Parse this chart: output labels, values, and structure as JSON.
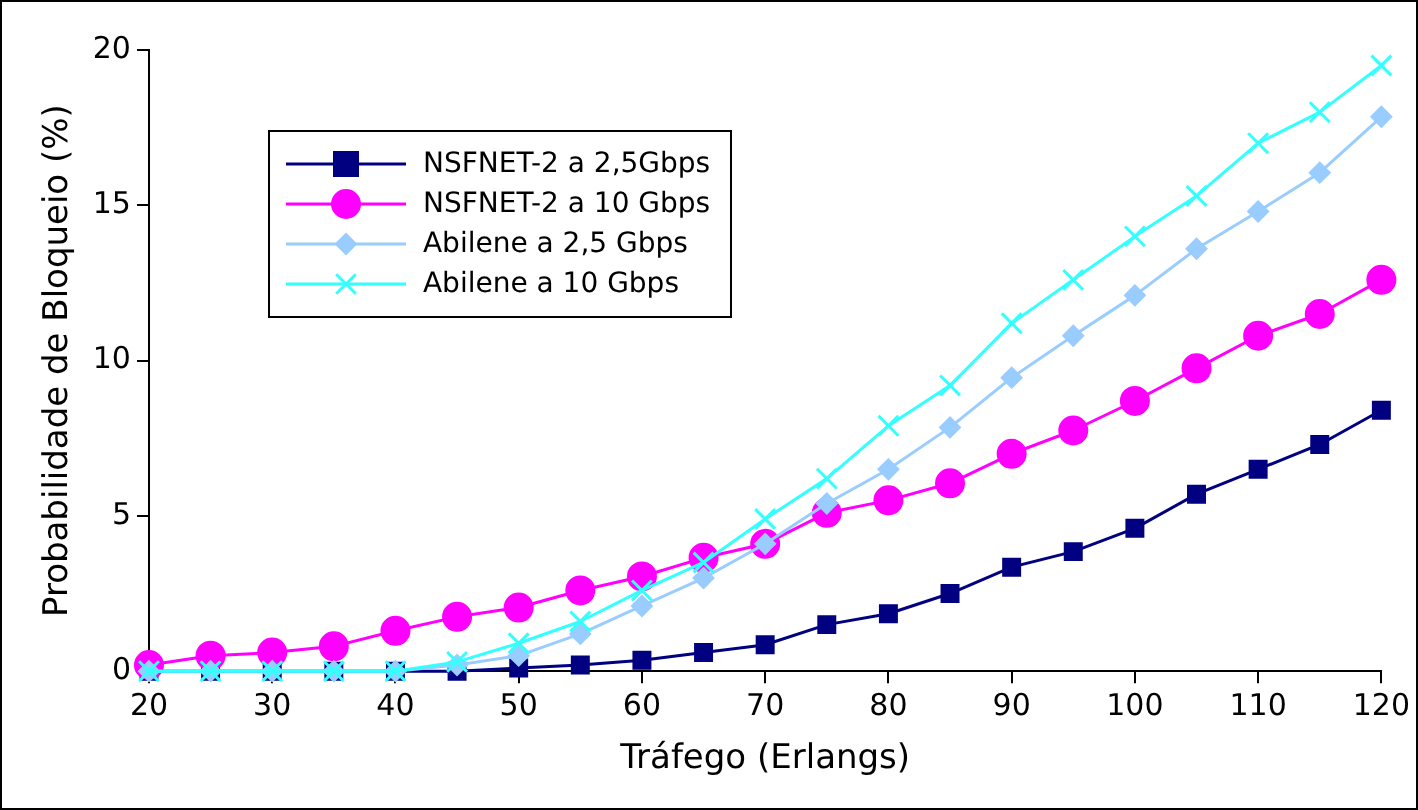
{
  "chart_data": {
    "type": "line",
    "xlabel": "Tráfego (Erlangs)",
    "ylabel": "Probabilidade de Bloqueio (%)",
    "x": [
      20,
      25,
      30,
      35,
      40,
      45,
      50,
      55,
      60,
      65,
      70,
      75,
      80,
      85,
      90,
      95,
      100,
      105,
      110,
      115,
      120
    ],
    "xlim": [
      20,
      120
    ],
    "xticks": [
      20,
      30,
      40,
      50,
      60,
      70,
      80,
      90,
      100,
      110,
      120
    ],
    "ylim": [
      0,
      20
    ],
    "yticks": [
      0,
      5,
      10,
      15,
      20
    ],
    "grid": false,
    "legend": "top left",
    "line_style": "solid",
    "series": [
      {
        "name": "NSFNET-2 a 2,5Gbps",
        "color": "#000080",
        "marker": "square",
        "values": [
          0,
          0,
          0,
          0,
          0,
          0,
          0.1,
          0.2,
          0.35,
          0.6,
          0.85,
          1.5,
          1.85,
          2.5,
          3.35,
          3.85,
          4.6,
          5.7,
          6.5,
          7.3,
          8.4
        ]
      },
      {
        "name": "NSFNET-2 a 10 Gbps",
        "color": "#ff00ff",
        "marker": "circle",
        "values": [
          0.2,
          0.5,
          0.6,
          0.8,
          1.3,
          1.75,
          2.05,
          2.6,
          3.05,
          3.65,
          4.1,
          5.1,
          5.5,
          6.05,
          7.0,
          7.75,
          8.7,
          9.75,
          10.8,
          11.5,
          12.6
        ]
      },
      {
        "name": "Abilene a 2,5 Gbps",
        "color": "#99ccff",
        "marker": "diamond",
        "values": [
          0,
          0,
          0,
          0,
          0,
          0.2,
          0.5,
          1.2,
          2.1,
          3.0,
          4.1,
          5.4,
          6.5,
          7.85,
          9.45,
          10.8,
          12.1,
          13.6,
          14.8,
          16.05,
          17.85
        ]
      },
      {
        "name": "Abilene a 10 Gbps",
        "color": "#33ffff",
        "marker": "cross",
        "values": [
          0,
          0,
          0,
          0,
          0,
          0.3,
          0.9,
          1.6,
          2.6,
          3.5,
          4.9,
          6.2,
          7.9,
          9.2,
          11.2,
          12.6,
          14.0,
          15.3,
          17.0,
          18.0,
          19.5
        ]
      }
    ]
  }
}
